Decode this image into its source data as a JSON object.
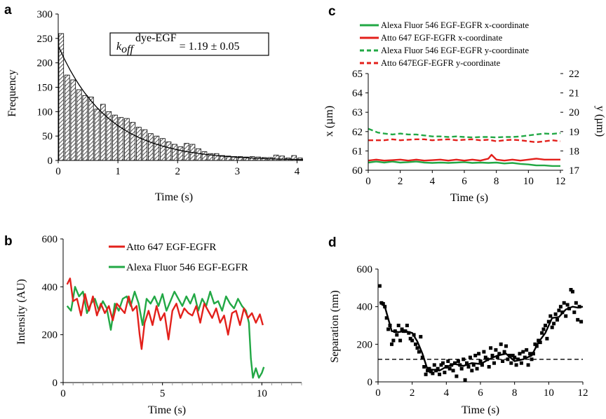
{
  "chart_data": [
    {
      "panel": "a",
      "type": "bar",
      "xlabel": "Time (s)",
      "ylabel": "Frequency",
      "xlim": [
        0,
        4.1
      ],
      "ylim": [
        0,
        300
      ],
      "xticks": [
        "0",
        "1",
        "2",
        "3",
        "4"
      ],
      "yticks": [
        "0",
        "50",
        "100",
        "150",
        "200",
        "250",
        "300"
      ],
      "bin_width": 0.1,
      "values": [
        260,
        175,
        165,
        145,
        133,
        130,
        105,
        115,
        100,
        93,
        88,
        86,
        78,
        68,
        63,
        55,
        50,
        45,
        38,
        33,
        28,
        35,
        33,
        24,
        18,
        14,
        14,
        10,
        9,
        8,
        8,
        7,
        8,
        7,
        6,
        6,
        11,
        9,
        5,
        10,
        5
      ],
      "fit": {
        "type": "exponential",
        "A": 235,
        "k": 1.19
      },
      "annotation": {
        "k_text": "k",
        "k_sub": "off",
        "k_sup": "dye-EGF",
        "value_text": " = 1.19 ± 0.05"
      }
    },
    {
      "panel": "b",
      "type": "line",
      "xlabel": "Time (s)",
      "ylabel": "Intensity (AU)",
      "xlim": [
        0,
        12
      ],
      "ylim": [
        0,
        600
      ],
      "xticks": [
        "0",
        "5",
        "10"
      ],
      "yticks": [
        "0",
        "200",
        "400",
        "600"
      ],
      "series": [
        {
          "name": "Atto 647 EGF-EGFR",
          "color": "#e3201b",
          "x": [
            0.2,
            0.35,
            0.5,
            0.7,
            0.9,
            1.1,
            1.3,
            1.5,
            1.7,
            1.9,
            2.1,
            2.3,
            2.5,
            2.7,
            2.9,
            3.1,
            3.3,
            3.5,
            3.7,
            3.85,
            3.95,
            4.1,
            4.3,
            4.5,
            4.7,
            4.9,
            5.1,
            5.3,
            5.5,
            5.7,
            5.9,
            6.1,
            6.3,
            6.5,
            6.7,
            6.9,
            7.1,
            7.3,
            7.5,
            7.7,
            7.9,
            8.1,
            8.3,
            8.5,
            8.7,
            8.9,
            9.1,
            9.3,
            9.5,
            9.7,
            9.9,
            10.05
          ],
          "y": [
            410,
            435,
            340,
            350,
            280,
            370,
            300,
            360,
            280,
            330,
            290,
            320,
            260,
            330,
            310,
            290,
            360,
            300,
            320,
            200,
            140,
            250,
            300,
            240,
            320,
            260,
            290,
            180,
            300,
            330,
            270,
            310,
            290,
            280,
            320,
            250,
            330,
            300,
            270,
            310,
            250,
            280,
            200,
            290,
            300,
            240,
            310,
            270,
            290,
            250,
            285,
            240
          ]
        },
        {
          "name": "Alexa Fluor 546 EGF-EGFR",
          "color": "#22a845",
          "x": [
            0.2,
            0.4,
            0.6,
            0.8,
            1.0,
            1.2,
            1.4,
            1.6,
            1.8,
            2.0,
            2.2,
            2.4,
            2.6,
            2.8,
            3.0,
            3.2,
            3.4,
            3.6,
            3.8,
            4.0,
            4.2,
            4.4,
            4.6,
            4.8,
            5.0,
            5.2,
            5.4,
            5.6,
            5.8,
            6.0,
            6.2,
            6.4,
            6.6,
            6.8,
            7.0,
            7.2,
            7.4,
            7.6,
            7.8,
            8.0,
            8.2,
            8.4,
            8.6,
            8.8,
            9.0,
            9.2,
            9.35,
            9.45,
            9.55,
            9.7,
            9.85,
            10.0,
            10.1
          ],
          "y": [
            320,
            300,
            400,
            360,
            380,
            290,
            330,
            350,
            300,
            340,
            310,
            220,
            330,
            300,
            350,
            360,
            320,
            380,
            330,
            240,
            350,
            330,
            360,
            320,
            370,
            300,
            340,
            380,
            350,
            320,
            360,
            330,
            370,
            300,
            350,
            320,
            380,
            330,
            340,
            300,
            360,
            330,
            310,
            350,
            320,
            300,
            250,
            100,
            20,
            60,
            20,
            40,
            65
          ]
        }
      ],
      "legend_placement": "top"
    },
    {
      "panel": "c",
      "type": "line",
      "xlabel": "Time (s)",
      "ylabel": "x (µm)",
      "ylabel_right": "y (µm)",
      "xlim": [
        0,
        12
      ],
      "ylim": [
        60,
        65
      ],
      "ylim_right": [
        17,
        22
      ],
      "xticks": [
        "0",
        "2",
        "4",
        "6",
        "8",
        "10",
        "12"
      ],
      "yticks": [
        "60",
        "61",
        "62",
        "63",
        "64",
        "65"
      ],
      "yticks_right": [
        "17",
        "18",
        "19",
        "20",
        "21",
        "22"
      ],
      "series": [
        {
          "name": "Alexa Fluor 546 EGF-EGFR x-coordinate",
          "color": "#22a845",
          "dash": "solid",
          "axis": "left",
          "x": [
            0,
            0.5,
            1,
            1.5,
            2,
            2.5,
            3,
            3.5,
            4,
            4.5,
            5,
            5.5,
            6,
            6.5,
            7,
            7.5,
            8,
            8.5,
            9,
            9.5,
            10,
            10.5,
            11,
            11.5,
            12
          ],
          "y": [
            60.4,
            60.45,
            60.4,
            60.45,
            60.4,
            60.42,
            60.45,
            60.4,
            60.38,
            60.4,
            60.38,
            60.4,
            60.42,
            60.38,
            60.4,
            60.38,
            60.4,
            60.35,
            60.38,
            60.33,
            60.3,
            60.25,
            60.25,
            60.22,
            60.22
          ]
        },
        {
          "name": "Atto 647 EGF-EGFR x-coordinate",
          "color": "#e3201b",
          "dash": "solid",
          "axis": "left",
          "x": [
            0,
            0.5,
            1,
            1.5,
            2,
            2.5,
            3,
            3.5,
            4,
            4.5,
            5,
            5.5,
            6,
            6.5,
            7,
            7.5,
            7.7,
            8,
            8.5,
            9,
            9.5,
            10,
            10.5,
            11,
            11.5,
            12
          ],
          "y": [
            60.5,
            60.55,
            60.5,
            60.52,
            60.55,
            60.5,
            60.55,
            60.5,
            60.52,
            60.55,
            60.5,
            60.55,
            60.5,
            60.55,
            60.5,
            60.6,
            60.8,
            60.55,
            60.5,
            60.55,
            60.5,
            60.55,
            60.6,
            60.55,
            60.55,
            60.55
          ]
        },
        {
          "name": "Alexa Fluor 546 EGF-EGFR y-coordinate",
          "color": "#22a845",
          "dash": "dashed",
          "axis": "right",
          "x": [
            0,
            0.3,
            0.6,
            1,
            1.5,
            2,
            2.5,
            3,
            3.5,
            4,
            4.5,
            5,
            5.5,
            6,
            6.5,
            7,
            7.5,
            8,
            8.5,
            9,
            9.5,
            10,
            10.5,
            11,
            11.5,
            12
          ],
          "y": [
            19.15,
            19.05,
            18.95,
            18.9,
            18.85,
            18.9,
            18.85,
            18.85,
            18.8,
            18.75,
            18.75,
            18.72,
            18.75,
            18.72,
            18.7,
            18.72,
            18.72,
            18.7,
            18.72,
            18.72,
            18.75,
            18.8,
            18.85,
            18.9,
            18.88,
            18.92
          ]
        },
        {
          "name": "Atto 647EGF-EGFR y-coordinate",
          "color": "#e3201b",
          "dash": "dashed",
          "axis": "right",
          "x": [
            0,
            0.5,
            1,
            1.5,
            2,
            2.5,
            3,
            3.5,
            4,
            4.5,
            5,
            5.5,
            6,
            6.5,
            7,
            7.5,
            8,
            8.5,
            9,
            9.5,
            10,
            10.5,
            11,
            11.5,
            12
          ],
          "y": [
            18.55,
            18.55,
            18.55,
            18.6,
            18.55,
            18.58,
            18.6,
            18.6,
            18.55,
            18.58,
            18.6,
            18.55,
            18.58,
            18.6,
            18.55,
            18.58,
            18.5,
            18.55,
            18.58,
            18.55,
            18.5,
            18.45,
            18.5,
            18.55,
            18.5
          ]
        }
      ],
      "legend_placement": "top"
    },
    {
      "panel": "d",
      "type": "scatter",
      "xlabel": "Time (s)",
      "ylabel": "Separation (nm)",
      "xlim": [
        0,
        12
      ],
      "ylim": [
        0,
        600
      ],
      "xticks": [
        "0",
        "2",
        "4",
        "6",
        "8",
        "10",
        "12"
      ],
      "yticks": [
        "0",
        "200",
        "400",
        "600"
      ],
      "points": {
        "x": [
          0.1,
          0.2,
          0.3,
          0.4,
          0.5,
          0.6,
          0.7,
          0.8,
          0.9,
          1.0,
          1.1,
          1.2,
          1.3,
          1.4,
          1.5,
          1.6,
          1.7,
          1.8,
          1.9,
          2.0,
          2.1,
          2.2,
          2.3,
          2.4,
          2.5,
          2.6,
          2.7,
          2.8,
          2.9,
          3.0,
          3.1,
          3.2,
          3.3,
          3.4,
          3.5,
          3.6,
          3.7,
          3.8,
          3.9,
          4.0,
          4.1,
          4.2,
          4.3,
          4.4,
          4.5,
          4.6,
          4.7,
          4.8,
          4.9,
          5.0,
          5.1,
          5.2,
          5.3,
          5.4,
          5.5,
          5.6,
          5.7,
          5.8,
          5.9,
          6.0,
          6.1,
          6.2,
          6.3,
          6.4,
          6.5,
          6.6,
          6.7,
          6.8,
          6.9,
          7.0,
          7.1,
          7.2,
          7.3,
          7.4,
          7.5,
          7.6,
          7.7,
          7.8,
          7.9,
          8.0,
          8.1,
          8.2,
          8.3,
          8.4,
          8.5,
          8.6,
          8.7,
          8.8,
          8.9,
          9.0,
          9.1,
          9.2,
          9.3,
          9.4,
          9.5,
          9.6,
          9.7,
          9.8,
          9.9,
          10.0,
          10.1,
          10.2,
          10.3,
          10.4,
          10.5,
          10.6,
          10.7,
          10.8,
          10.9,
          11.0,
          11.1,
          11.2,
          11.3,
          11.4,
          11.5,
          11.6,
          11.7,
          11.8,
          11.9
        ],
        "y": [
          510,
          420,
          415,
          400,
          340,
          280,
          300,
          200,
          220,
          270,
          250,
          300,
          220,
          280,
          270,
          270,
          300,
          260,
          230,
          220,
          250,
          200,
          180,
          160,
          240,
          130,
          80,
          40,
          60,
          70,
          55,
          45,
          90,
          60,
          70,
          40,
          90,
          100,
          50,
          80,
          110,
          70,
          90,
          60,
          100,
          30,
          110,
          90,
          70,
          120,
          10,
          100,
          80,
          130,
          60,
          90,
          140,
          70,
          150,
          110,
          90,
          160,
          130,
          120,
          80,
          180,
          140,
          100,
          170,
          130,
          150,
          200,
          110,
          160,
          190,
          120,
          140,
          100,
          140,
          130,
          90,
          120,
          150,
          100,
          160,
          130,
          170,
          90,
          150,
          120,
          150,
          200,
          190,
          220,
          210,
          260,
          280,
          300,
          230,
          320,
          350,
          290,
          310,
          360,
          330,
          380,
          400,
          370,
          420,
          350,
          410,
          390,
          490,
          480,
          370,
          420,
          330,
          400,
          320
        ]
      },
      "smoothed": {
        "x": [
          0.1,
          0.4,
          0.8,
          1.2,
          1.6,
          2.0,
          2.3,
          2.6,
          2.9,
          3.2,
          3.6,
          4.0,
          4.5,
          5.0,
          5.5,
          6.0,
          6.5,
          7.0,
          7.5,
          8.0,
          8.5,
          9.0,
          9.4,
          9.8,
          10.2,
          10.6,
          11.0,
          11.4,
          11.7,
          12.0
        ],
        "y": [
          425,
          400,
          270,
          265,
          270,
          260,
          215,
          150,
          65,
          65,
          60,
          80,
          95,
          85,
          100,
          95,
          120,
          140,
          150,
          110,
          120,
          140,
          210,
          260,
          340,
          345,
          385,
          400,
          395,
          400
        ]
      },
      "reference_line": {
        "y": 120,
        "style": "dashed"
      }
    }
  ],
  "panel_labels": [
    "a",
    "b",
    "c",
    "d"
  ]
}
